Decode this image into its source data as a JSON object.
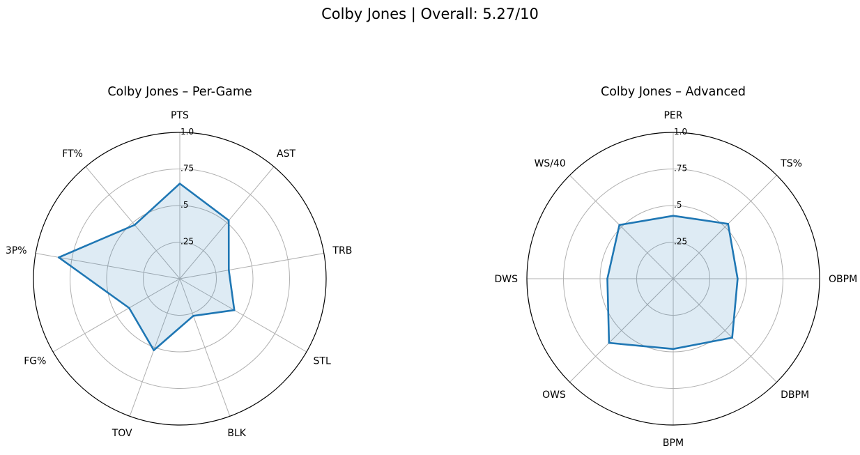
{
  "figure": {
    "suptitle": "Colby Jones | Overall: 5.27/10"
  },
  "chart_data": [
    {
      "type": "radar",
      "title": "Colby Jones – Per-Game",
      "axes": [
        "PTS",
        "AST",
        "TRB",
        "STL",
        "BLK",
        "TOV",
        "FG%",
        "3P%",
        "FT%"
      ],
      "values": [
        0.65,
        0.52,
        0.34,
        0.43,
        0.27,
        0.52,
        0.4,
        0.84,
        0.48
      ],
      "rlim": [
        0,
        1.0
      ],
      "rticks": [
        ".25",
        ".5",
        ".75",
        "1.0"
      ],
      "grid": true,
      "line_color": "#1f77b4",
      "fill_color": "#1f77b4"
    },
    {
      "type": "radar",
      "title": "Colby Jones – Advanced",
      "axes": [
        "PER",
        "TS%",
        "OBPM",
        "DBPM",
        "BPM",
        "OWS",
        "DWS",
        "WS/40"
      ],
      "values": [
        0.43,
        0.53,
        0.44,
        0.57,
        0.48,
        0.62,
        0.45,
        0.52
      ],
      "rlim": [
        0,
        1.0
      ],
      "rticks": [
        ".25",
        ".5",
        ".75",
        "1.0"
      ],
      "grid": true,
      "line_color": "#1f77b4",
      "fill_color": "#1f77b4"
    }
  ]
}
